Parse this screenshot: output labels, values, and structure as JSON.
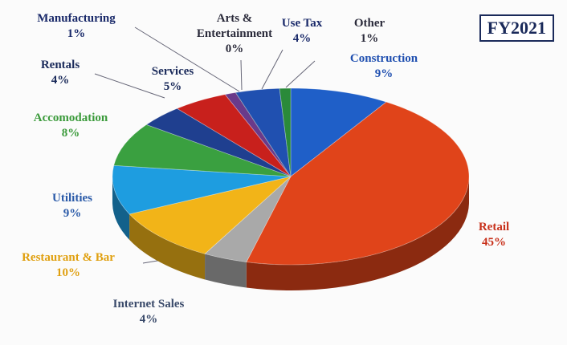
{
  "chart_data": {
    "type": "pie",
    "title": "FY2021",
    "categories": [
      "Construction",
      "Retail",
      "Internet Sales",
      "Restaurant & Bar",
      "Utilities",
      "Accomodation",
      "Rentals",
      "Services",
      "Manufacturing",
      "Arts & Entertainment",
      "Use Tax",
      "Other"
    ],
    "values": [
      9,
      45,
      4,
      10,
      9,
      8,
      4,
      5,
      1,
      0,
      4,
      1
    ],
    "value_labels": [
      "9%",
      "45%",
      "4%",
      "10%",
      "9%",
      "8%",
      "4%",
      "5%",
      "1%",
      "0%",
      "4%",
      "1%"
    ],
    "colors": [
      "#1f5fc8",
      "#e0441a",
      "#a9a9a9",
      "#f2b418",
      "#1e9de0",
      "#3aa040",
      "#1f3f8f",
      "#c8201c",
      "#6a3a8a",
      "#888888",
      "#2050b0",
      "#2a8a3a"
    ],
    "label_colors": [
      "#1f4fb0",
      "#c8301a",
      "#3a4a6a",
      "#e0a010",
      "#2a5aa8",
      "#3a9a3a",
      "#1a2a5a",
      "#1a2a5a",
      "#1a2a6a",
      "#2a2a3a",
      "#1a2a6a",
      "#2a2a3a"
    ]
  }
}
